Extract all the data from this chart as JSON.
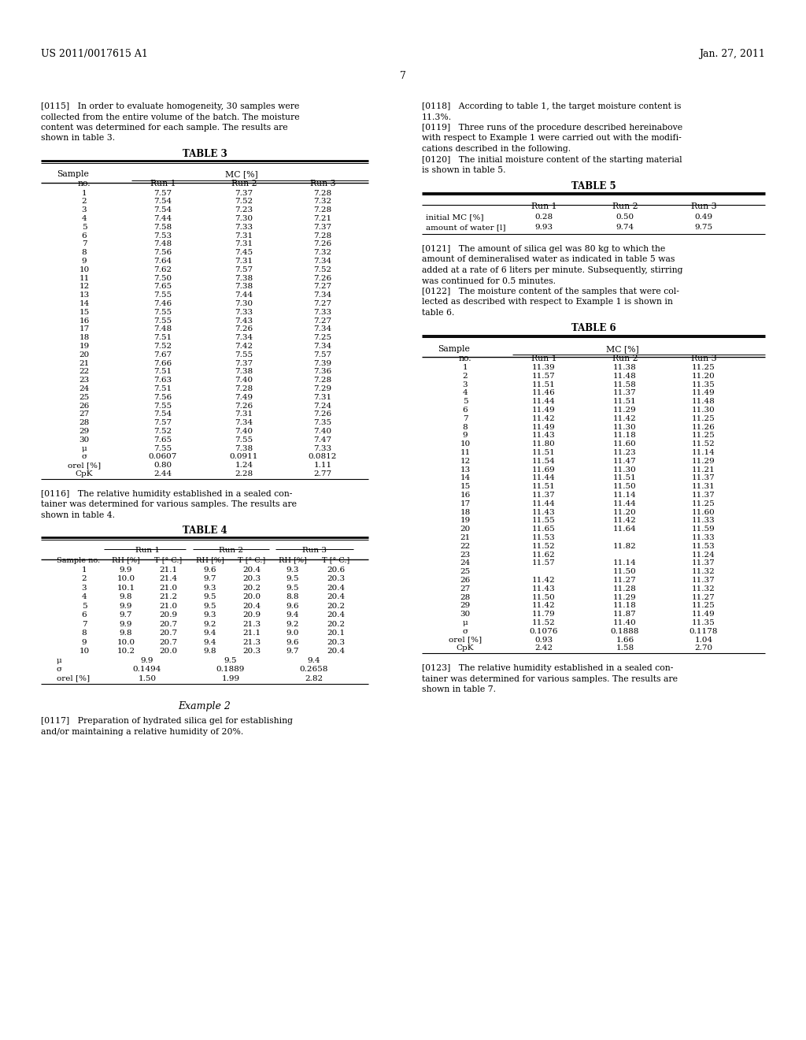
{
  "header_left": "US 2011/0017615 A1",
  "header_right": "Jan. 27, 2011",
  "page_number": "7",
  "bg_color": "#ffffff",
  "para_115_lines": [
    "[0115]   In order to evaluate homogeneity, 30 samples were",
    "collected from the entire volume of the batch. The moisture",
    "content was determined for each sample. The results are",
    "shown in table 3."
  ],
  "table3_title": "TABLE 3",
  "table3_data": [
    [
      "1",
      "7.57",
      "7.37",
      "7.28"
    ],
    [
      "2",
      "7.54",
      "7.52",
      "7.32"
    ],
    [
      "3",
      "7.54",
      "7.23",
      "7.28"
    ],
    [
      "4",
      "7.44",
      "7.30",
      "7.21"
    ],
    [
      "5",
      "7.58",
      "7.33",
      "7.37"
    ],
    [
      "6",
      "7.53",
      "7.31",
      "7.28"
    ],
    [
      "7",
      "7.48",
      "7.31",
      "7.26"
    ],
    [
      "8",
      "7.56",
      "7.45",
      "7.32"
    ],
    [
      "9",
      "7.64",
      "7.31",
      "7.34"
    ],
    [
      "10",
      "7.62",
      "7.57",
      "7.52"
    ],
    [
      "11",
      "7.50",
      "7.38",
      "7.26"
    ],
    [
      "12",
      "7.65",
      "7.38",
      "7.27"
    ],
    [
      "13",
      "7.55",
      "7.44",
      "7.34"
    ],
    [
      "14",
      "7.46",
      "7.30",
      "7.27"
    ],
    [
      "15",
      "7.55",
      "7.33",
      "7.33"
    ],
    [
      "16",
      "7.55",
      "7.43",
      "7.27"
    ],
    [
      "17",
      "7.48",
      "7.26",
      "7.34"
    ],
    [
      "18",
      "7.51",
      "7.34",
      "7.25"
    ],
    [
      "19",
      "7.52",
      "7.42",
      "7.34"
    ],
    [
      "20",
      "7.67",
      "7.55",
      "7.57"
    ],
    [
      "21",
      "7.66",
      "7.37",
      "7.39"
    ],
    [
      "22",
      "7.51",
      "7.38",
      "7.36"
    ],
    [
      "23",
      "7.63",
      "7.40",
      "7.28"
    ],
    [
      "24",
      "7.51",
      "7.28",
      "7.29"
    ],
    [
      "25",
      "7.56",
      "7.49",
      "7.31"
    ],
    [
      "26",
      "7.55",
      "7.26",
      "7.24"
    ],
    [
      "27",
      "7.54",
      "7.31",
      "7.26"
    ],
    [
      "28",
      "7.57",
      "7.34",
      "7.35"
    ],
    [
      "29",
      "7.52",
      "7.40",
      "7.40"
    ],
    [
      "30",
      "7.65",
      "7.55",
      "7.47"
    ],
    [
      "μ",
      "7.55",
      "7.38",
      "7.33"
    ],
    [
      "σ",
      "0.0607",
      "0.0911",
      "0.0812"
    ],
    [
      "orel [%]",
      "0.80",
      "1.24",
      "1.11"
    ],
    [
      "CpK",
      "2.44",
      "2.28",
      "2.77"
    ]
  ],
  "para_116_lines": [
    "[0116]   The relative humidity established in a sealed con-",
    "tainer was determined for various samples. The results are",
    "shown in table 4."
  ],
  "table4_title": "TABLE 4",
  "table4_data": [
    [
      "1",
      "9.9",
      "21.1",
      "9.6",
      "20.4",
      "9.3",
      "20.6"
    ],
    [
      "2",
      "10.0",
      "21.4",
      "9.7",
      "20.3",
      "9.5",
      "20.3"
    ],
    [
      "3",
      "10.1",
      "21.0",
      "9.3",
      "20.2",
      "9.5",
      "20.4"
    ],
    [
      "4",
      "9.8",
      "21.2",
      "9.5",
      "20.0",
      "8.8",
      "20.4"
    ],
    [
      "5",
      "9.9",
      "21.0",
      "9.5",
      "20.4",
      "9.6",
      "20.2"
    ],
    [
      "6",
      "9.7",
      "20.9",
      "9.3",
      "20.9",
      "9.4",
      "20.4"
    ],
    [
      "7",
      "9.9",
      "20.7",
      "9.2",
      "21.3",
      "9.2",
      "20.2"
    ],
    [
      "8",
      "9.8",
      "20.7",
      "9.4",
      "21.1",
      "9.0",
      "20.1"
    ],
    [
      "9",
      "10.0",
      "20.7",
      "9.4",
      "21.3",
      "9.6",
      "20.3"
    ],
    [
      "10",
      "10.2",
      "20.0",
      "9.8",
      "20.3",
      "9.7",
      "20.4"
    ]
  ],
  "table4_stat": [
    [
      "μ",
      "9.9",
      "9.5",
      "9.4"
    ],
    [
      "σ",
      "0.1494",
      "0.1889",
      "0.2658"
    ],
    [
      "orel [%]",
      "1.50",
      "1.99",
      "2.82"
    ]
  ],
  "example2_title": "Example 2",
  "para_117_lines": [
    "[0117]   Preparation of hydrated silica gel for establishing",
    "and/or maintaining a relative humidity of 20%."
  ],
  "para_118_lines": [
    "[0118]   According to table 1, the target moisture content is",
    "11.3%."
  ],
  "para_119_lines": [
    "[0119]   Three runs of the procedure described hereinabove",
    "with respect to Example 1 were carried out with the modifi-",
    "cations described in the following."
  ],
  "para_120_lines": [
    "[0120]   The initial moisture content of the starting material",
    "is shown in table 5."
  ],
  "table5_title": "TABLE 5",
  "table5_data": [
    [
      "initial MC [%]",
      "0.28",
      "0.50",
      "0.49"
    ],
    [
      "amount of water [l]",
      "9.93",
      "9.74",
      "9.75"
    ]
  ],
  "para_121_lines": [
    "[0121]   The amount of silica gel was 80 kg to which the",
    "amount of demineralised water as indicated in table 5 was",
    "added at a rate of 6 liters per minute. Subsequently, stirring",
    "was continued for 0.5 minutes."
  ],
  "para_122_lines": [
    "[0122]   The moisture content of the samples that were col-",
    "lected as described with respect to Example 1 is shown in",
    "table 6."
  ],
  "table6_title": "TABLE 6",
  "table6_data": [
    [
      "1",
      "11.39",
      "11.38",
      "11.25"
    ],
    [
      "2",
      "11.57",
      "11.48",
      "11.20"
    ],
    [
      "3",
      "11.51",
      "11.58",
      "11.35"
    ],
    [
      "4",
      "11.46",
      "11.37",
      "11.49"
    ],
    [
      "5",
      "11.44",
      "11.51",
      "11.48"
    ],
    [
      "6",
      "11.49",
      "11.29",
      "11.30"
    ],
    [
      "7",
      "11.42",
      "11.42",
      "11.25"
    ],
    [
      "8",
      "11.49",
      "11.30",
      "11.26"
    ],
    [
      "9",
      "11.43",
      "11.18",
      "11.25"
    ],
    [
      "10",
      "11.80",
      "11.60",
      "11.52"
    ],
    [
      "11",
      "11.51",
      "11.23",
      "11.14"
    ],
    [
      "12",
      "11.54",
      "11.47",
      "11.29"
    ],
    [
      "13",
      "11.69",
      "11.30",
      "11.21"
    ],
    [
      "14",
      "11.44",
      "11.51",
      "11.37"
    ],
    [
      "15",
      "11.51",
      "11.50",
      "11.31"
    ],
    [
      "16",
      "11.37",
      "11.14",
      "11.37"
    ],
    [
      "17",
      "11.44",
      "11.44",
      "11.25"
    ],
    [
      "18",
      "11.43",
      "11.20",
      "11.60"
    ],
    [
      "19",
      "11.55",
      "11.42",
      "11.33"
    ],
    [
      "20",
      "11.65",
      "11.64",
      "11.59"
    ],
    [
      "21",
      "11.53",
      "",
      "11.33"
    ],
    [
      "22",
      "11.52",
      "11.82",
      "11.53"
    ],
    [
      "23",
      "11.62",
      "",
      "11.24"
    ],
    [
      "24",
      "11.57",
      "11.14",
      "11.37"
    ],
    [
      "25",
      "",
      "11.50",
      "11.32"
    ],
    [
      "26",
      "11.42",
      "11.27",
      "11.37"
    ],
    [
      "27",
      "11.43",
      "11.28",
      "11.32"
    ],
    [
      "28",
      "11.50",
      "11.29",
      "11.27"
    ],
    [
      "29",
      "11.42",
      "11.18",
      "11.25"
    ],
    [
      "30",
      "11.79",
      "11.87",
      "11.49"
    ],
    [
      "μ",
      "11.52",
      "11.40",
      "11.35"
    ],
    [
      "σ",
      "0.1076",
      "0.1888",
      "0.1178"
    ],
    [
      "orel [%]",
      "0.93",
      "1.66",
      "1.04"
    ],
    [
      "CpK",
      "2.42",
      "1.58",
      "2.70"
    ]
  ],
  "para_123_lines": [
    "[0123]   The relative humidity established in a sealed con-",
    "tainer was determined for various samples. The results are",
    "shown in table 7."
  ]
}
